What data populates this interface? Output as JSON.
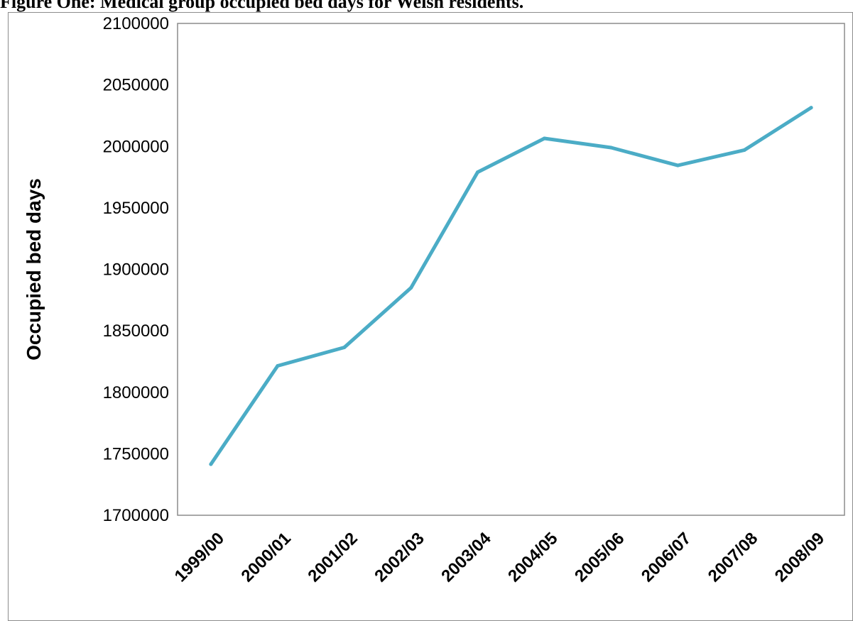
{
  "page": {
    "title": "Figure One: Medical group occupied bed days for Welsh residents."
  },
  "chart_data": {
    "type": "line",
    "title": "",
    "xlabel": "",
    "ylabel": "Occupied bed days",
    "categories": [
      "1999/00",
      "2000/01",
      "2001/02",
      "2002/03",
      "2003/04",
      "2004/05",
      "2005/06",
      "2006/07",
      "2007/08",
      "2008/09"
    ],
    "series": [
      {
        "values": [
          1741500,
          1821500,
          1836500,
          1885000,
          1979000,
          2006500,
          1999000,
          1984500,
          1997000,
          2031500
        ],
        "color": "#4bacc6"
      }
    ],
    "ylim": [
      1700000,
      2100000
    ],
    "yticks": [
      1700000,
      1750000,
      1800000,
      1850000,
      1900000,
      1950000,
      2000000,
      2050000,
      2100000
    ],
    "grid": false,
    "legend": "none"
  }
}
